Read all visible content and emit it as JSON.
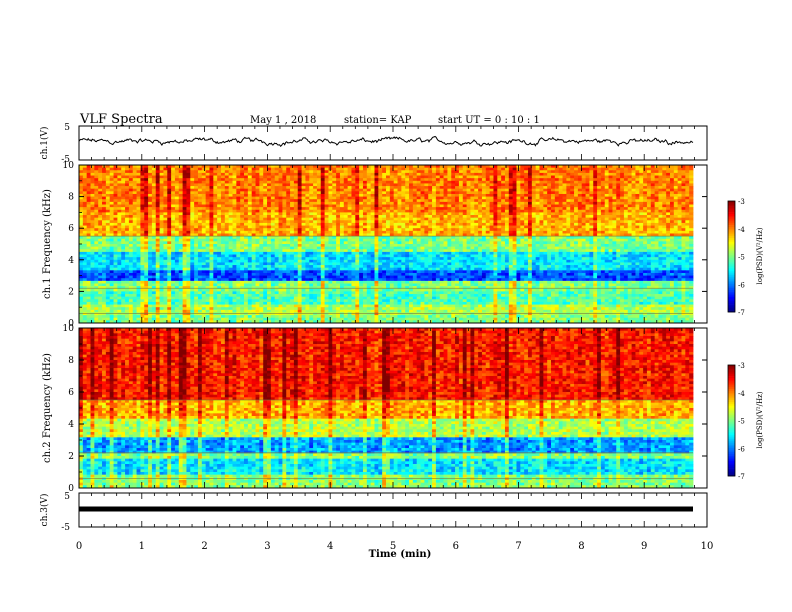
{
  "header": {
    "title": "VLF Spectra",
    "date": "May 1 , 2018",
    "station": "station= KAP",
    "start": "start UT = 0 : 10 : 1"
  },
  "chart_data": [
    {
      "type": "line",
      "ylabel": "ch.1(V)",
      "ylim": [
        -5,
        5
      ],
      "yticks": [
        "5",
        "-5"
      ],
      "xlim": [
        0,
        10
      ],
      "description_values": {
        "typical_level_V": 0.5,
        "range_V": [
          -2,
          2
        ]
      }
    },
    {
      "type": "heatmap",
      "ylabel": "ch.1 Frequency (kHz)",
      "ylim": [
        0,
        10
      ],
      "yticks": [
        "0",
        "2",
        "4",
        "6",
        "8",
        "10"
      ],
      "xlim": [
        0,
        10
      ],
      "colorbar": {
        "label": "log(PSD)(V²/Hz)",
        "range": [
          -7,
          -3
        ],
        "ticks": [
          "-3",
          "-4",
          "-5",
          "-6",
          "-7"
        ]
      },
      "bands": [
        {
          "f_min": 0,
          "f_max": 0.5,
          "level": -5.0
        },
        {
          "f_min": 0.5,
          "f_max": 1.2,
          "level": -4.8
        },
        {
          "f_min": 1.2,
          "f_max": 2.0,
          "level": -5.2
        },
        {
          "f_min": 2.0,
          "f_max": 2.6,
          "level": -5.0
        },
        {
          "f_min": 2.6,
          "f_max": 3.3,
          "level": -6.2
        },
        {
          "f_min": 3.3,
          "f_max": 4.5,
          "level": -5.6
        },
        {
          "f_min": 4.5,
          "f_max": 5.5,
          "level": -5.0
        },
        {
          "f_min": 5.5,
          "f_max": 7.0,
          "level": -4.2
        },
        {
          "f_min": 7.0,
          "f_max": 10.0,
          "level": -4.0
        }
      ]
    },
    {
      "type": "heatmap",
      "ylabel": "ch.2 Frequency (kHz)",
      "ylim": [
        0,
        10
      ],
      "yticks": [
        "0",
        "2",
        "4",
        "6",
        "8",
        "10"
      ],
      "xlim": [
        0,
        10
      ],
      "colorbar": {
        "label": "log(PSD)(V²/Hz)",
        "range": [
          -7,
          -3
        ],
        "ticks": [
          "-3",
          "-4",
          "-5",
          "-6",
          "-7"
        ]
      },
      "bands": [
        {
          "f_min": 0,
          "f_max": 0.8,
          "level": -5.0
        },
        {
          "f_min": 0.8,
          "f_max": 1.8,
          "level": -5.6
        },
        {
          "f_min": 1.8,
          "f_max": 2.2,
          "level": -5.0
        },
        {
          "f_min": 2.2,
          "f_max": 3.2,
          "level": -5.9
        },
        {
          "f_min": 3.2,
          "f_max": 4.4,
          "level": -4.8
        },
        {
          "f_min": 4.4,
          "f_max": 5.5,
          "level": -4.2
        },
        {
          "f_min": 5.5,
          "f_max": 10.0,
          "level": -3.6
        }
      ]
    },
    {
      "type": "line",
      "ylabel": "ch.3(V)",
      "ylim": [
        -5,
        5
      ],
      "yticks": [
        "5",
        "-5"
      ],
      "xlim": [
        0,
        10
      ],
      "xlabel": "Time (min)",
      "xticks": [
        "0",
        "1",
        "2",
        "3",
        "4",
        "5",
        "6",
        "7",
        "8",
        "9",
        "10"
      ],
      "constant_level_V": 0.3
    }
  ]
}
